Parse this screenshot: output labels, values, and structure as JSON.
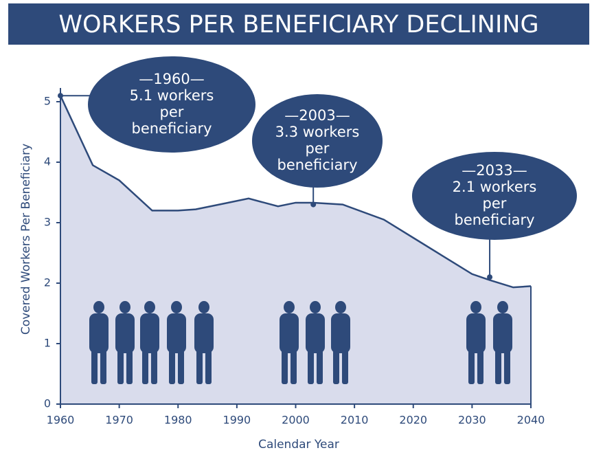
{
  "chart_data": {
    "type": "area",
    "title": "WORKERS PER BENEFICIARY DECLINING",
    "x_label": "Calendar Year",
    "y_label": "Covered Workers Per Beneficiary",
    "x": [
      1960,
      1965.5,
      1970,
      1975.6,
      1980,
      1983,
      1988,
      1992,
      1997,
      2000,
      2003,
      2008,
      2015,
      2020,
      2025,
      2030,
      2033,
      2037,
      2040
    ],
    "values": [
      5.1,
      3.95,
      3.7,
      3.2,
      3.2,
      3.22,
      3.32,
      3.4,
      3.27,
      3.33,
      3.33,
      3.3,
      3.05,
      2.75,
      2.45,
      2.15,
      2.05,
      1.93,
      1.95
    ],
    "color": "#2e4a7a",
    "fill": "#d9dcec",
    "xlim": [
      1960,
      2040
    ],
    "xticks": [
      1960,
      1970,
      1980,
      1990,
      2000,
      2010,
      2020,
      2030,
      2040
    ],
    "ylim": [
      0,
      5
    ],
    "yticks": [
      0,
      1,
      2,
      3,
      4,
      5
    ],
    "annotations": [
      {
        "x": 1960,
        "y": 5.1,
        "lines": [
          "—1960—",
          "5.1 workers",
          "per",
          "beneficiary"
        ]
      },
      {
        "x": 2003,
        "y": 3.3,
        "lines": [
          "—2003—",
          "3.3 workers",
          "per",
          "beneficiary"
        ]
      },
      {
        "x": 2033,
        "y": 2.1,
        "lines": [
          "—2033—",
          "2.1 workers",
          "per",
          "beneficiary"
        ]
      }
    ]
  }
}
